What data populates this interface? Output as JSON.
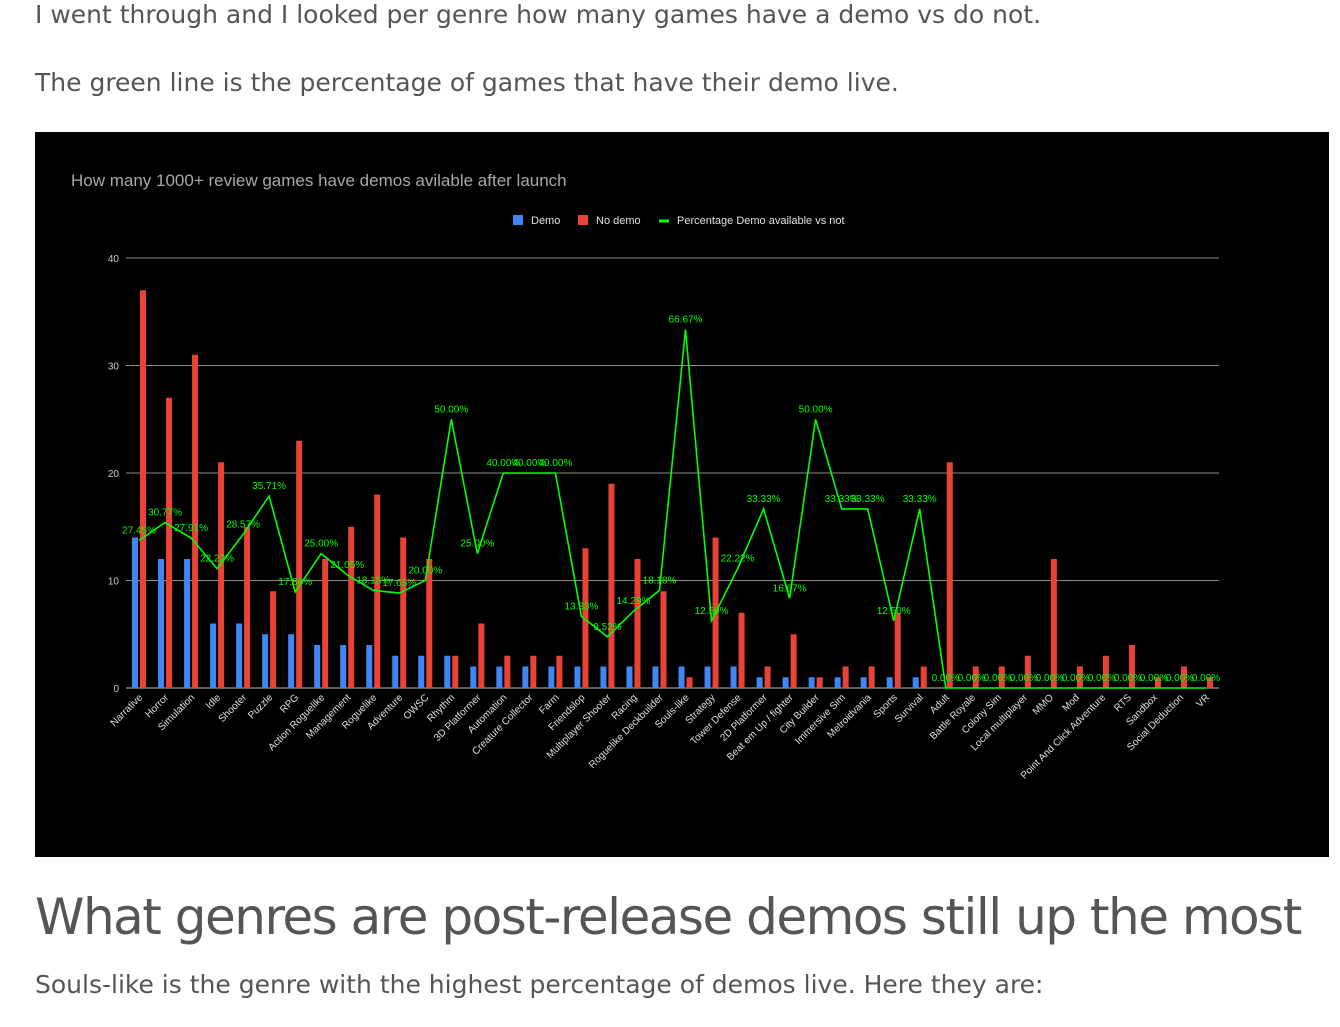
{
  "article": {
    "intro_1": "I went through and I looked per genre how many games have a demo vs do not.",
    "intro_2": "The green line is the percentage of games that have their demo live.",
    "heading": "What genres are post-release demos still up the most",
    "outro": "Souls-like is the genre with the highest percentage of demos live. Here they are:"
  },
  "chart_data": {
    "type": "bar",
    "title": "How many 1000+ review games have demos avilable after launch",
    "xlabel": "",
    "ylabel": "",
    "ylim": [
      0,
      40
    ],
    "yticks": [
      "0",
      "10",
      "20",
      "30",
      "40"
    ],
    "grid": true,
    "legend_position": "top",
    "categories": [
      "Narrative",
      "Horror",
      "Simulation",
      "Idle",
      "Shooter",
      "Puzzle",
      "RPG",
      "Action Roguelike",
      "Management",
      "Roguelike",
      "Adventure",
      "OWSC",
      "Rhythm",
      "3D Platformer",
      "Automation",
      "Creature Collector",
      "Farm",
      "Friendslop",
      "Multiplayer Shooter",
      "Racing",
      "Roguelike Deckbuilder",
      "Souls-like",
      "Strategy",
      "Tower Defense",
      "2D Platformer",
      "Beat em Up / fighter",
      "City Builder",
      "Immersive Sim",
      "Metroidvania",
      "Sports",
      "Survival",
      "Adult",
      "Battle Royale",
      "Colony Sim",
      "Local multiplayer",
      "MMO",
      "Mod",
      "Point And Click Adventure",
      "RTS",
      "Sandbox",
      "Social Deduction",
      "VR"
    ],
    "series": [
      {
        "name": "Demo",
        "kind": "bar",
        "color": "#4285f4",
        "values": [
          14,
          12,
          12,
          6,
          6,
          5,
          5,
          4,
          4,
          4,
          3,
          3,
          3,
          2,
          2,
          2,
          2,
          2,
          2,
          2,
          2,
          2,
          2,
          2,
          1,
          1,
          1,
          1,
          1,
          1,
          1,
          0,
          0,
          0,
          0,
          0,
          0,
          0,
          0,
          0,
          0,
          0
        ]
      },
      {
        "name": "No demo",
        "kind": "bar",
        "color": "#ea4335",
        "values": [
          37,
          27,
          31,
          21,
          15,
          9,
          23,
          12,
          15,
          18,
          14,
          12,
          3,
          6,
          3,
          3,
          3,
          13,
          19,
          12,
          9,
          1,
          14,
          7,
          2,
          5,
          1,
          2,
          2,
          7,
          2,
          21,
          2,
          2,
          3,
          12,
          2,
          3,
          4,
          1,
          2,
          1
        ]
      },
      {
        "name": "Percentage Demo available vs not",
        "kind": "line",
        "color": "#00ff00",
        "values": [
          27.45,
          30.77,
          27.91,
          22.22,
          28.57,
          35.71,
          17.86,
          25.0,
          21.05,
          18.18,
          17.65,
          20.0,
          50.0,
          25.0,
          40.0,
          40.0,
          40.0,
          13.33,
          9.52,
          14.29,
          18.18,
          66.67,
          12.5,
          22.22,
          33.33,
          16.67,
          50.0,
          33.33,
          33.33,
          12.5,
          33.33,
          0,
          0,
          0,
          0,
          0,
          0,
          0,
          0,
          0,
          0,
          0
        ],
        "labels": [
          "27.45%",
          "30.77%",
          "27.91%",
          "22.22%",
          "28.57%",
          "35.71%",
          "17.86%",
          "25.00%",
          "21.05%",
          "18.18%",
          "17.65%",
          "20.00%",
          "50.00%",
          "25.00%",
          "40.00%",
          "40.00%",
          "40.00%",
          "13.33%",
          "9.52%",
          "14.29%",
          "18.18%",
          "66.67%",
          "12.50%",
          "22.22%",
          "33.33%",
          "16.67%",
          "50.00%",
          "33.33%",
          "33.33%",
          "12.50%",
          "33.33%",
          "0.00%",
          "0.00%",
          "0.00%",
          "0.00%",
          "0.00%",
          "0.00%",
          "0.00%",
          "0.00%",
          "0.00%",
          "0.00%",
          "0.00%"
        ]
      }
    ]
  }
}
